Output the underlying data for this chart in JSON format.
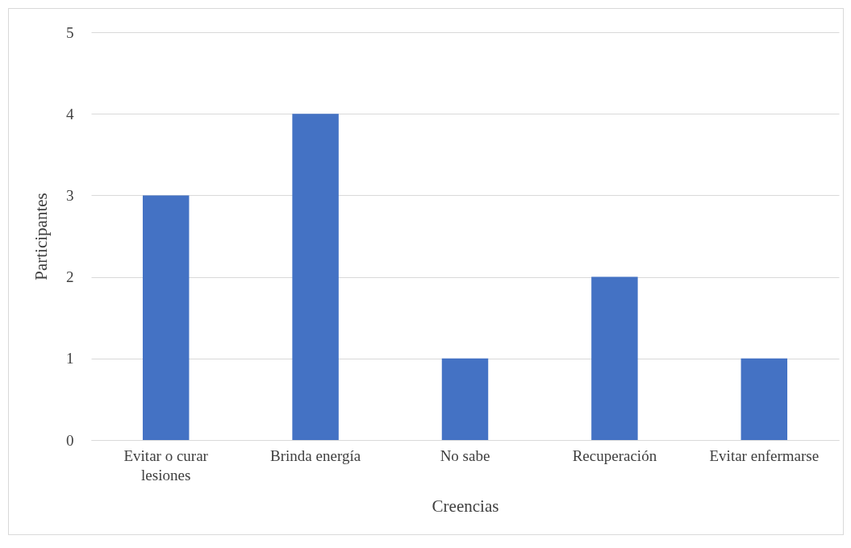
{
  "chart_data": {
    "type": "bar",
    "xlabel": "Creencias",
    "ylabel": "Participantes",
    "categories": [
      "Evitar o curar lesiones",
      "Brinda energía",
      "No sabe",
      "Recuperación",
      "Evitar enfermarse"
    ],
    "values": [
      3,
      4,
      1,
      2,
      1
    ],
    "color": "#4472c4",
    "ylim": [
      0,
      5
    ],
    "yticks": [
      0,
      1,
      2,
      3,
      4,
      5
    ],
    "grid": "y"
  }
}
